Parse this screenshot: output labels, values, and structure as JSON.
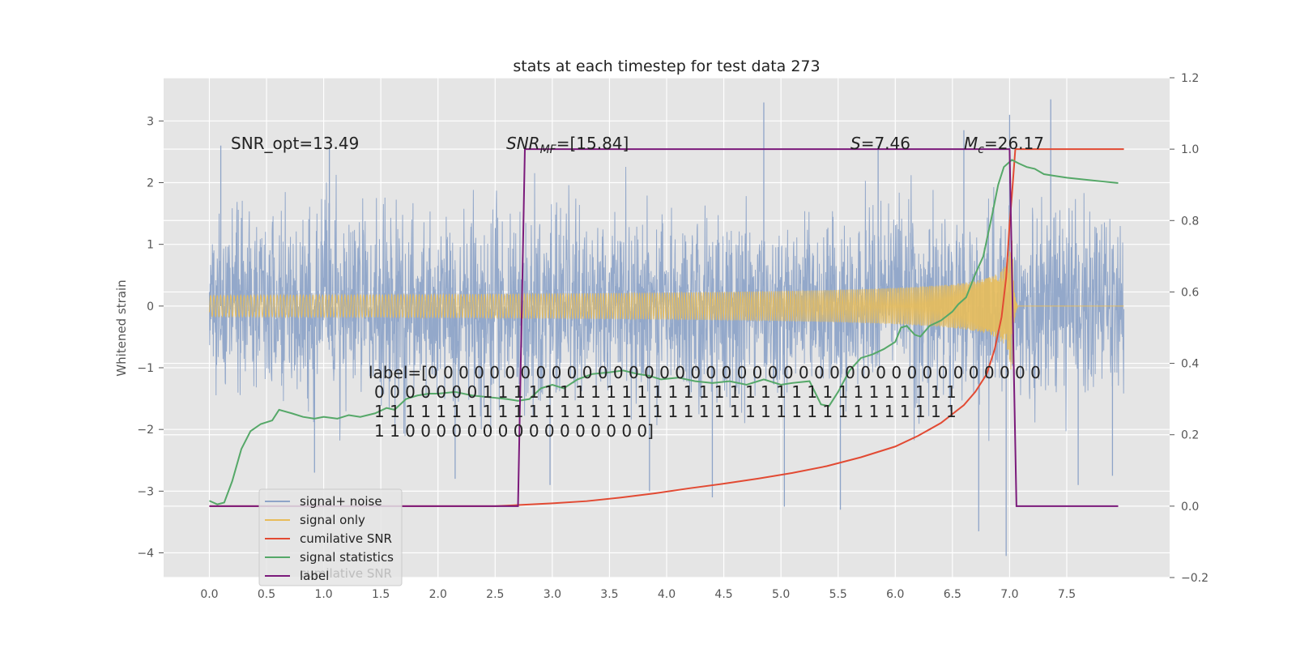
{
  "chart_data": {
    "type": "line",
    "title": "stats at each timestep for test data 273",
    "ylabel": "Whitened strain",
    "xlabel": "",
    "xlim": [
      -0.4,
      8.4
    ],
    "ylim_left": [
      -4.4,
      3.7
    ],
    "ylim_right": [
      -0.2,
      1.2
    ],
    "grid": true,
    "background": "#e5e5e5",
    "x_ticks": [
      0.0,
      0.5,
      1.0,
      1.5,
      2.0,
      2.5,
      3.0,
      3.5,
      4.0,
      4.5,
      5.0,
      5.5,
      6.0,
      6.5,
      7.0,
      7.5
    ],
    "x_tick_labels": [
      "0.0",
      "0.5",
      "1.0",
      "1.5",
      "2.0",
      "2.5",
      "3.0",
      "3.5",
      "4.0",
      "4.5",
      "5.0",
      "5.5",
      "6.0",
      "6.5",
      "7.0",
      "7.5"
    ],
    "y_ticks_left": [
      -4,
      -3,
      -2,
      -1,
      0,
      1,
      2,
      3
    ],
    "y_tick_labels_left": [
      "−4",
      "−3",
      "−2",
      "−1",
      "0",
      "1",
      "2",
      "3"
    ],
    "y_ticks_right": [
      -0.2,
      0.0,
      0.2,
      0.4,
      0.6,
      0.8,
      1.0,
      1.2
    ],
    "y_tick_labels_right": [
      "−0.2",
      "0.0",
      "0.2",
      "0.4",
      "0.6",
      "0.8",
      "1.0",
      "1.2"
    ],
    "annotations": {
      "snr_opt": "SNR_opt=13.49",
      "snr_mf_prefix": "SNR",
      "snr_mf_sub": "MF",
      "snr_mf_suffix": "=[15.84]",
      "s_prefix": "S",
      "s_suffix": "=7.46",
      "mc_prefix": "M",
      "mc_sub": "c",
      "mc_suffix": "=26.17",
      "label_lines": [
        "label=[0 0 0 0 0 0 0 0 0 0 0 0 0 0 0 0 0 0 0 0 0 0 0 0 0 0 0 0 0 0 0 0 0 0 0 0 0 0 0 0",
        "0 0 0 0 0 0 0 1 1 1 1 1 1 1 1 1 1 1 1 1 1 1 1 1 1 1 1 1 1 1 1 1 1 1 1 1 1 1",
        "1 1 1 1 1 1 1 1 1 1 1 1 1 1 1 1 1 1 1 1 1 1 1 1 1 1 1 1 1 1 1 1 1 1 1 1 1 1",
        "1 1 0 0 0 0 0 0 0 0 0 0 0 0 0 0 0 0]"
      ],
      "ghost_legend_text": "cumilative SNR"
    },
    "legend_position": "lower-left",
    "series": [
      {
        "name": "signal+ noise",
        "color": "#8ea4c8",
        "axis": "left",
        "kind": "noise",
        "x_range": [
          0.0,
          8.0
        ],
        "std": 0.75,
        "extremes": [
          {
            "x": 4.85,
            "y": 3.3
          },
          {
            "x": 7.36,
            "y": 3.35
          },
          {
            "x": 7.0,
            "y": 3.1
          },
          {
            "x": 6.97,
            "y": -4.05
          },
          {
            "x": 6.73,
            "y": -3.65
          },
          {
            "x": 5.52,
            "y": -3.3
          },
          {
            "x": 5.03,
            "y": -3.25
          },
          {
            "x": 4.4,
            "y": -3.1
          },
          {
            "x": 3.85,
            "y": -3.0
          },
          {
            "x": 0.92,
            "y": -2.7
          },
          {
            "x": 2.15,
            "y": -2.8
          },
          {
            "x": 2.98,
            "y": -2.9
          },
          {
            "x": 7.6,
            "y": -2.9
          },
          {
            "x": 7.9,
            "y": -2.75
          },
          {
            "x": 0.1,
            "y": 2.6
          },
          {
            "x": 1.05,
            "y": 2.55
          },
          {
            "x": 6.6,
            "y": 2.85
          },
          {
            "x": 5.85,
            "y": 2.6
          }
        ]
      },
      {
        "name": "signal only",
        "color": "#e8bc5a",
        "axis": "left",
        "kind": "chirp",
        "x_range": [
          0.0,
          8.0
        ],
        "merger_time": 7.02,
        "peak_amplitude": 1.55
      },
      {
        "name": "cumilative SNR",
        "color": "#e24a33",
        "axis": "right",
        "x": [
          0.0,
          2.5,
          2.7,
          3.0,
          3.3,
          3.6,
          3.9,
          4.2,
          4.5,
          4.8,
          5.1,
          5.4,
          5.7,
          6.0,
          6.2,
          6.4,
          6.6,
          6.7,
          6.8,
          6.87,
          6.93,
          6.97,
          7.0,
          7.02,
          7.05,
          7.3,
          7.6,
          8.0
        ],
        "y": [
          0.0,
          0.0,
          0.003,
          0.008,
          0.014,
          0.024,
          0.036,
          0.05,
          0.063,
          0.077,
          0.093,
          0.112,
          0.137,
          0.167,
          0.197,
          0.233,
          0.283,
          0.32,
          0.37,
          0.44,
          0.53,
          0.64,
          0.79,
          0.87,
          1.0,
          1.0,
          1.0,
          1.0
        ]
      },
      {
        "name": "signal statistics",
        "color": "#55a868",
        "axis": "right",
        "x": [
          0.0,
          0.07,
          0.13,
          0.2,
          0.28,
          0.36,
          0.45,
          0.55,
          0.61,
          0.72,
          0.82,
          0.92,
          1.0,
          1.12,
          1.22,
          1.32,
          1.45,
          1.55,
          1.62,
          1.72,
          1.82,
          1.92,
          2.0,
          2.15,
          2.3,
          2.45,
          2.6,
          2.7,
          2.8,
          2.9,
          3.0,
          3.1,
          3.22,
          3.35,
          3.5,
          3.62,
          3.75,
          3.85,
          3.95,
          4.1,
          4.25,
          4.4,
          4.55,
          4.7,
          4.85,
          5.0,
          5.1,
          5.25,
          5.35,
          5.42,
          5.5,
          5.6,
          5.7,
          5.8,
          5.9,
          6.0,
          6.05,
          6.1,
          6.17,
          6.22,
          6.3,
          6.4,
          6.5,
          6.55,
          6.62,
          6.7,
          6.77,
          6.85,
          6.9,
          6.95,
          7.02,
          7.08,
          7.15,
          7.22,
          7.3,
          7.4,
          7.5,
          7.65,
          7.8,
          7.95
        ],
        "y": [
          0.015,
          0.005,
          0.01,
          0.07,
          0.16,
          0.21,
          0.23,
          0.24,
          0.27,
          0.26,
          0.25,
          0.245,
          0.25,
          0.245,
          0.255,
          0.25,
          0.26,
          0.275,
          0.27,
          0.3,
          0.31,
          0.315,
          0.315,
          0.32,
          0.31,
          0.305,
          0.3,
          0.295,
          0.3,
          0.33,
          0.34,
          0.33,
          0.355,
          0.37,
          0.375,
          0.38,
          0.37,
          0.365,
          0.355,
          0.36,
          0.35,
          0.345,
          0.35,
          0.34,
          0.355,
          0.34,
          0.345,
          0.35,
          0.285,
          0.28,
          0.32,
          0.38,
          0.415,
          0.425,
          0.44,
          0.46,
          0.5,
          0.505,
          0.48,
          0.475,
          0.505,
          0.52,
          0.545,
          0.565,
          0.585,
          0.65,
          0.7,
          0.82,
          0.9,
          0.95,
          0.97,
          0.96,
          0.95,
          0.945,
          0.93,
          0.925,
          0.92,
          0.915,
          0.91,
          0.905
        ]
      },
      {
        "name": "label",
        "color": "#7b1a7b",
        "axis": "right",
        "x": [
          0.0,
          2.7,
          2.76,
          7.0,
          7.06,
          7.95
        ],
        "y": [
          0.0,
          0.0,
          1.0,
          1.0,
          0.0,
          0.0
        ]
      }
    ]
  }
}
